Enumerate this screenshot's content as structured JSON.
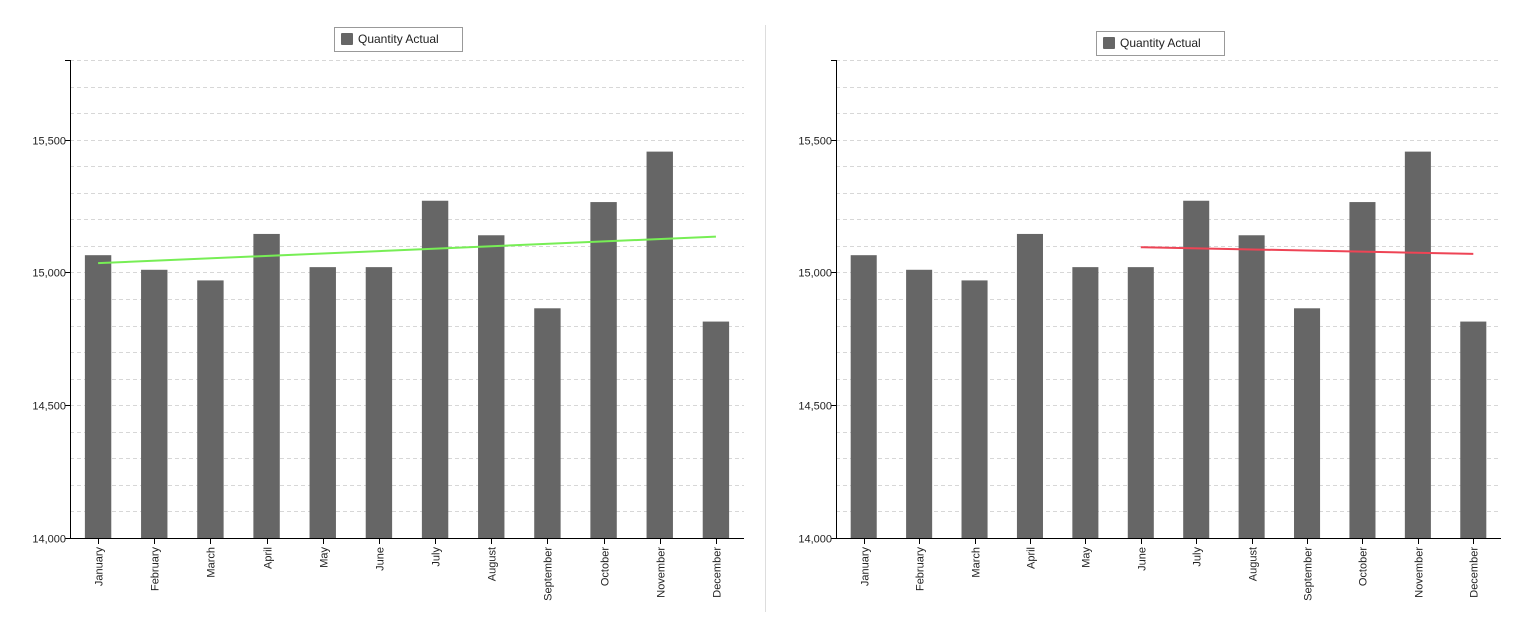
{
  "chart_data": [
    {
      "type": "bar",
      "categories": [
        "January",
        "February",
        "March",
        "April",
        "May",
        "June",
        "July",
        "August",
        "September",
        "October",
        "November",
        "December"
      ],
      "series": [
        {
          "name": "Quantity Actual",
          "values": [
            15065,
            15010,
            14970,
            15145,
            15020,
            15020,
            15270,
            15140,
            14865,
            15265,
            15455,
            14815
          ]
        }
      ],
      "trendline": {
        "from_category": "January",
        "to_category": "December",
        "start_value": 15035,
        "end_value": 15135,
        "color": "#77ee55"
      },
      "ylim": [
        14000,
        15800
      ],
      "yticks": [
        14000,
        14500,
        15000,
        15500
      ],
      "ytick_labels": [
        "14,000",
        "14,500",
        "15,000",
        "15,500"
      ],
      "bar_color": "#666666",
      "grid": true,
      "legend_position": "top-center"
    },
    {
      "type": "bar",
      "categories": [
        "January",
        "February",
        "March",
        "April",
        "May",
        "June",
        "July",
        "August",
        "September",
        "October",
        "November",
        "December"
      ],
      "series": [
        {
          "name": "Quantity Actual",
          "values": [
            15065,
            15010,
            14970,
            15145,
            15020,
            15020,
            15270,
            15140,
            14865,
            15265,
            15455,
            14815
          ]
        }
      ],
      "trendline": {
        "from_category": "June",
        "to_category": "December",
        "start_value": 15095,
        "end_value": 15070,
        "color": "#ee4455"
      },
      "ylim": [
        14000,
        15800
      ],
      "yticks": [
        14000,
        14500,
        15000,
        15500
      ],
      "ytick_labels": [
        "14,000",
        "14,500",
        "15,000",
        "15,500"
      ],
      "bar_color": "#666666",
      "grid": true,
      "legend_position": "top-center"
    }
  ]
}
